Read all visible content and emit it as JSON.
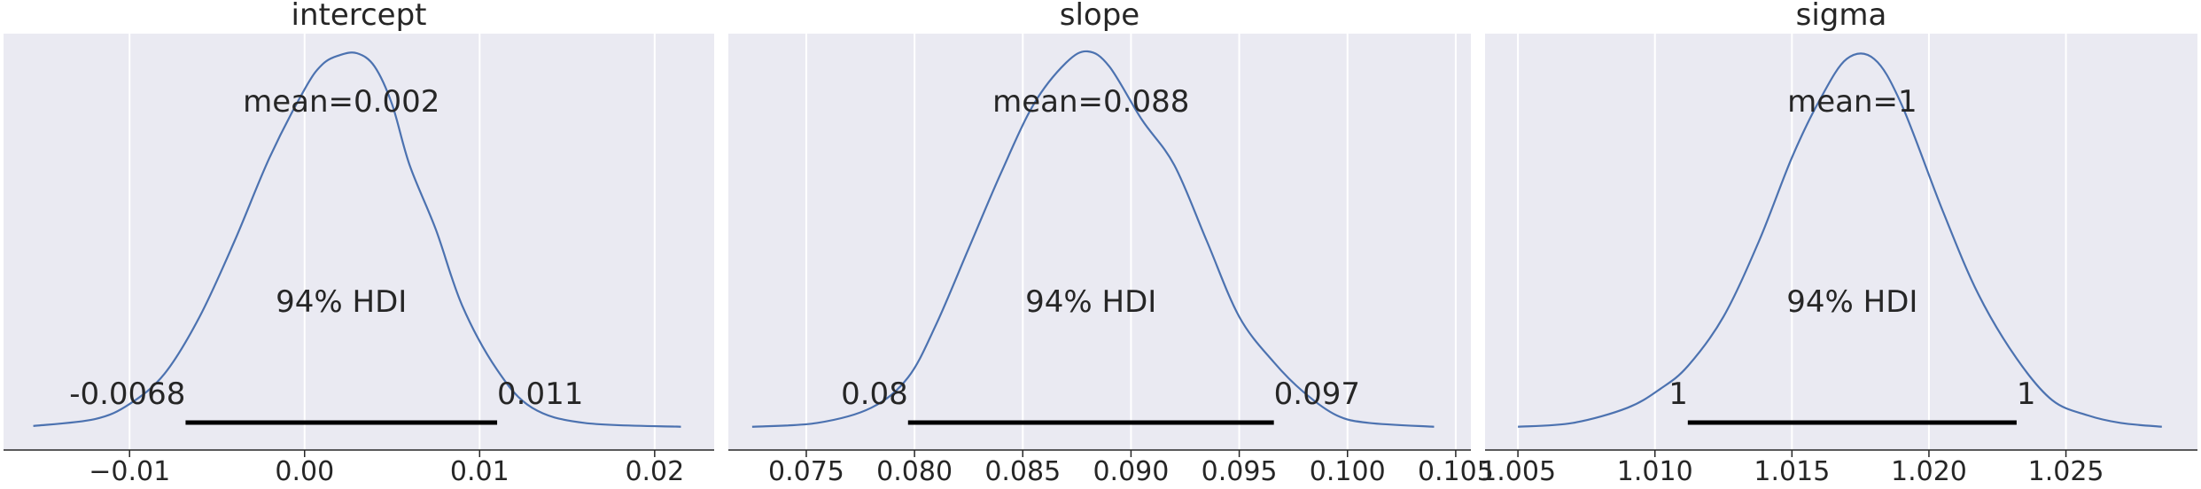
{
  "chart_data": [
    {
      "type": "line",
      "title": "intercept",
      "mean_label": "mean=0.002",
      "hdi_label": "94% HDI",
      "hdi": [
        -0.0068,
        0.011
      ],
      "hdi_low_label": "-0.0068",
      "hdi_high_label": "0.011",
      "xlim": [
        -0.0172,
        0.0234
      ],
      "ticks": [
        -0.01,
        0.0,
        0.01,
        0.02
      ],
      "tick_labels": [
        "−0.01",
        "0.00",
        "0.01",
        "0.02"
      ],
      "x": [
        -0.0155,
        -0.012,
        -0.01,
        -0.008,
        -0.006,
        -0.004,
        -0.002,
        0.0,
        0.001,
        0.002,
        0.003,
        0.004,
        0.005,
        0.006,
        0.0075,
        0.009,
        0.011,
        0.013,
        0.016,
        0.0215
      ],
      "y": [
        0.012,
        0.03,
        0.07,
        0.15,
        0.3,
        0.5,
        0.72,
        0.9,
        0.965,
        0.99,
        0.995,
        0.96,
        0.86,
        0.7,
        0.53,
        0.33,
        0.16,
        0.06,
        0.02,
        0.01
      ]
    },
    {
      "type": "line",
      "title": "slope",
      "mean_label": "mean=0.088",
      "hdi_label": "94% HDI",
      "hdi": [
        0.0797,
        0.0966
      ],
      "hdi_low_label": "0.08",
      "hdi_high_label": "0.097",
      "xlim": [
        0.0714,
        0.1057
      ],
      "ticks": [
        0.075,
        0.08,
        0.085,
        0.09,
        0.095,
        0.1,
        0.105
      ],
      "tick_labels": [
        "0.075",
        "0.080",
        "0.085",
        "0.090",
        "0.095",
        "0.100",
        "0.105"
      ],
      "x": [
        0.0725,
        0.0755,
        0.078,
        0.0797,
        0.081,
        0.0825,
        0.084,
        0.0855,
        0.087,
        0.088,
        0.089,
        0.0905,
        0.092,
        0.0935,
        0.095,
        0.0966,
        0.098,
        0.0995,
        0.101,
        0.104
      ],
      "y": [
        0.01,
        0.02,
        0.06,
        0.14,
        0.28,
        0.48,
        0.68,
        0.86,
        0.97,
        1.0,
        0.96,
        0.82,
        0.7,
        0.5,
        0.3,
        0.18,
        0.1,
        0.04,
        0.02,
        0.01
      ]
    },
    {
      "type": "line",
      "title": "sigma",
      "mean_label": "mean=1",
      "hdi_label": "94% HDI",
      "hdi": [
        1.0112,
        1.0232
      ],
      "hdi_low_label": "1",
      "hdi_high_label": "1",
      "xlim": [
        1.0038,
        1.0298
      ],
      "ticks": [
        1.005,
        1.01,
        1.015,
        1.02,
        1.025
      ],
      "tick_labels": [
        "1.005",
        "1.010",
        "1.015",
        "1.020",
        "1.025"
      ],
      "x": [
        1.005,
        1.007,
        1.009,
        1.0102,
        1.0112,
        1.0125,
        1.0138,
        1.015,
        1.016,
        1.017,
        1.018,
        1.019,
        1.0205,
        1.0218,
        1.0232,
        1.0245,
        1.0258,
        1.027,
        1.0285
      ],
      "y": [
        0.01,
        0.02,
        0.06,
        0.11,
        0.17,
        0.3,
        0.5,
        0.72,
        0.87,
        0.98,
        0.98,
        0.86,
        0.58,
        0.36,
        0.19,
        0.08,
        0.04,
        0.02,
        0.01
      ]
    }
  ]
}
